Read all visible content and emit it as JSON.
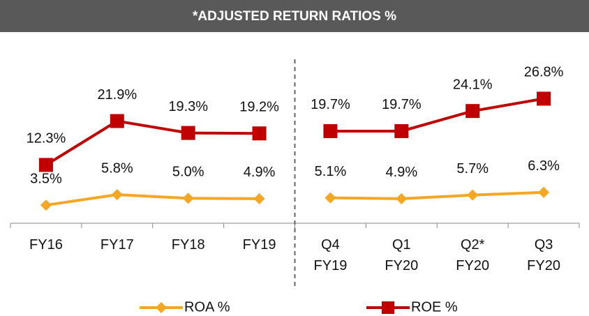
{
  "chart_data": {
    "type": "line",
    "title": "*ADJUSTED RETURN RATIOS %",
    "categories": [
      "FY16",
      "FY17",
      "FY18",
      "FY19",
      "Q4 FY19",
      "Q1 FY20",
      "Q2* FY20",
      "Q3 FY20"
    ],
    "group_sizes": [
      4,
      4
    ],
    "series": [
      {
        "name": "ROA %",
        "color": "#f5a623",
        "marker": "diamond",
        "values": [
          3.5,
          5.8,
          5.0,
          4.9,
          5.1,
          4.9,
          5.7,
          6.3
        ],
        "value_labels": [
          "3.5%",
          "5.8%",
          "5.0%",
          "4.9%",
          "5.1%",
          "4.9%",
          "5.7%",
          "6.3%"
        ]
      },
      {
        "name": "ROE %",
        "color": "#c00000",
        "marker": "square",
        "values": [
          12.3,
          21.9,
          19.3,
          19.2,
          19.7,
          19.7,
          24.1,
          26.8
        ],
        "value_labels": [
          "12.3%",
          "21.9%",
          "19.3%",
          "19.2%",
          "19.7%",
          "19.7%",
          "24.1%",
          "26.8%"
        ]
      }
    ]
  }
}
